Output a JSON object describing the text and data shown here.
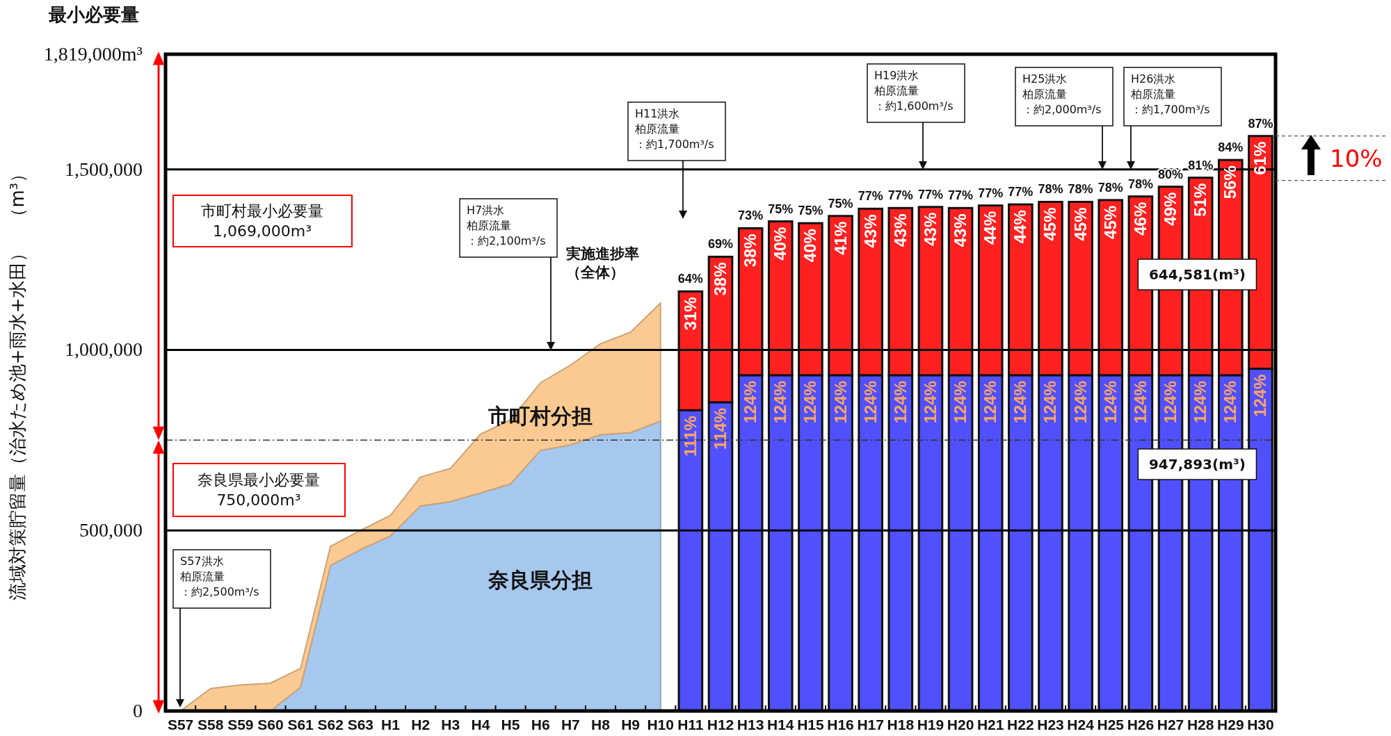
{
  "chart_data": {
    "type": "bar",
    "stacked": true,
    "ylabel": "流域対策貯留量（治水ため池+雨水+水田）　（m³）",
    "categories": [
      "S57",
      "S58",
      "S59",
      "S60",
      "S61",
      "S62",
      "S63",
      "H1",
      "H2",
      "H3",
      "H4",
      "H5",
      "H6",
      "H7",
      "H8",
      "H9",
      "H10",
      "H11",
      "H12",
      "H13",
      "H14",
      "H15",
      "H16",
      "H17",
      "H18",
      "H19",
      "H20",
      "H21",
      "H22",
      "H23",
      "H24",
      "H25",
      "H26",
      "H27",
      "H28",
      "H29",
      "H30"
    ],
    "series": [
      {
        "name": "奈良県分担",
        "type": "area",
        "color": "#a7c8ee",
        "values": [
          0,
          0,
          0,
          0,
          66000,
          403000,
          447000,
          485000,
          568000,
          580000,
          604000,
          629000,
          722000,
          737000,
          765000,
          771000,
          803000,
          null,
          null,
          null,
          null,
          null,
          null,
          null,
          null,
          null,
          null,
          null,
          null,
          null,
          null,
          null,
          null,
          null,
          null,
          null,
          null
        ]
      },
      {
        "name": "市町村分担",
        "type": "area",
        "color": "#fbca92",
        "values": [
          0,
          62000,
          72000,
          77000,
          52000,
          53000,
          53000,
          57000,
          80000,
          92000,
          163000,
          177000,
          187000,
          221000,
          252000,
          278000,
          327000,
          null,
          null,
          null,
          null,
          null,
          null,
          null,
          null,
          null,
          null,
          null,
          null,
          null,
          null,
          null,
          null,
          null,
          null,
          null,
          null
        ]
      },
      {
        "color": "#5050ff",
        "values": [
          null,
          null,
          null,
          null,
          null,
          null,
          null,
          null,
          null,
          null,
          null,
          null,
          null,
          null,
          null,
          null,
          null,
          833000,
          855000,
          930000,
          930000,
          930000,
          930000,
          930000,
          930000,
          930000,
          930000,
          930000,
          930000,
          930000,
          930000,
          930000,
          930000,
          930000,
          930000,
          930000,
          947893
        ]
      },
      {
        "color": "#ff2020",
        "values": [
          null,
          null,
          null,
          null,
          null,
          null,
          null,
          null,
          null,
          null,
          null,
          null,
          null,
          null,
          null,
          null,
          null,
          329000,
          403000,
          407000,
          426000,
          421000,
          441000,
          461000,
          463000,
          466000,
          463000,
          470000,
          473000,
          480000,
          480000,
          485000,
          495000,
          522000,
          547000,
          596000,
          644581
        ]
      }
    ],
    "ylim": [
      0,
      1819000
    ],
    "yticks": [
      0,
      {
        "value": 500000,
        "label": "500,000"
      },
      {
        "value": 1000000,
        "label": "1,000,000"
      },
      {
        "value": 1500000,
        "label": "1,500,000"
      },
      {
        "value": 1819000,
        "label": "1,819,000m³"
      }
    ],
    "grid": "y",
    "ref_lines": [
      {
        "axis": "y",
        "value": 750000,
        "line_style": "dashed",
        "color": "#333333"
      }
    ],
    "annotations": [
      "最小必要量",
      "市町村最小必要量\n1,069,000m³",
      "奈良県最小必要量\n750,000m³",
      "S57洪水柏原流量：約2,500m³/s",
      "H7洪水柏原流量：約2,100m³/s",
      "H11洪水柏原流量：約1,700m³/s",
      "H19洪水柏原流量：約1,600m³/s",
      "H25洪水柏原流量：約2,000m³/s",
      "H26洪水柏原流量：約1,700m³/s",
      "実施進捗率（全体）",
      "644,581(m³)",
      "947,893(m³)",
      "10%",
      {
        "text": "111%",
        "x": "H11",
        "y": 833000
      },
      {
        "text": "31%",
        "x": "H11",
        "y": 1162000
      },
      {
        "text": "64%",
        "x": "H11",
        "y": 1162000
      },
      {
        "text": "114%",
        "x": "H12",
        "y": 855000
      },
      {
        "text": "38%",
        "x": "H12",
        "y": 1258000
      },
      {
        "text": "69%",
        "x": "H12",
        "y": 1258000
      },
      {
        "text": "124%",
        "x": "H13",
        "y": 930000
      },
      {
        "text": "38%",
        "x": "H13",
        "y": 1337000
      },
      {
        "text": "73%",
        "x": "H13",
        "y": 1337000
      },
      {
        "text": "124%",
        "x": "H14",
        "y": 930000
      },
      {
        "text": "40%",
        "x": "H14",
        "y": 1356000
      },
      {
        "text": "75%",
        "x": "H14",
        "y": 1356000
      },
      {
        "text": "124%",
        "x": "H15",
        "y": 930000
      },
      {
        "text": "40%",
        "x": "H15",
        "y": 1351000
      },
      {
        "text": "75%",
        "x": "H15",
        "y": 1351000
      },
      {
        "text": "124%",
        "x": "H16",
        "y": 930000
      },
      {
        "text": "41%",
        "x": "H16",
        "y": 1371000
      },
      {
        "text": "75%",
        "x": "H16",
        "y": 1371000
      },
      {
        "text": "124%",
        "x": "H17",
        "y": 930000
      },
      {
        "text": "43%",
        "x": "H17",
        "y": 1391000
      },
      {
        "text": "77%",
        "x": "H17",
        "y": 1391000
      },
      {
        "text": "124%",
        "x": "H18",
        "y": 930000
      },
      {
        "text": "43%",
        "x": "H18",
        "y": 1393000
      },
      {
        "text": "77%",
        "x": "H18",
        "y": 1393000
      },
      {
        "text": "124%",
        "x": "H19",
        "y": 930000
      },
      {
        "text": "43%",
        "x": "H19",
        "y": 1396000
      },
      {
        "text": "77%",
        "x": "H19",
        "y": 1396000
      },
      {
        "text": "124%",
        "x": "H20",
        "y": 930000
      },
      {
        "text": "43%",
        "x": "H20",
        "y": 1393000
      },
      {
        "text": "77%",
        "x": "H20",
        "y": 1393000
      },
      {
        "text": "124%",
        "x": "H21",
        "y": 930000
      },
      {
        "text": "44%",
        "x": "H21",
        "y": 1400000
      },
      {
        "text": "77%",
        "x": "H21",
        "y": 1400000
      },
      {
        "text": "124%",
        "x": "H22",
        "y": 930000
      },
      {
        "text": "44%",
        "x": "H22",
        "y": 1403000
      },
      {
        "text": "77%",
        "x": "H22",
        "y": 1403000
      },
      {
        "text": "124%",
        "x": "H23",
        "y": 930000
      },
      {
        "text": "45%",
        "x": "H23",
        "y": 1410000
      },
      {
        "text": "78%",
        "x": "H23",
        "y": 1410000
      },
      {
        "text": "124%",
        "x": "H24",
        "y": 930000
      },
      {
        "text": "45%",
        "x": "H24",
        "y": 1410000
      },
      {
        "text": "78%",
        "x": "H24",
        "y": 1410000
      },
      {
        "text": "124%",
        "x": "H25",
        "y": 930000
      },
      {
        "text": "45%",
        "x": "H25",
        "y": 1415000
      },
      {
        "text": "78%",
        "x": "H25",
        "y": 1415000
      },
      {
        "text": "124%",
        "x": "H26",
        "y": 930000
      },
      {
        "text": "46%",
        "x": "H26",
        "y": 1425000
      },
      {
        "text": "78%",
        "x": "H26",
        "y": 1425000
      },
      {
        "text": "124%",
        "x": "H27",
        "y": 930000
      },
      {
        "text": "49%",
        "x": "H27",
        "y": 1452000
      },
      {
        "text": "80%",
        "x": "H27",
        "y": 1452000
      },
      {
        "text": "124%",
        "x": "H28",
        "y": 930000
      },
      {
        "text": "51%",
        "x": "H28",
        "y": 1477000
      },
      {
        "text": "81%",
        "x": "H28",
        "y": 1477000
      },
      {
        "text": "124%",
        "x": "H29",
        "y": 930000
      },
      {
        "text": "56%",
        "x": "H29",
        "y": 1526000
      },
      {
        "text": "84%",
        "x": "H29",
        "y": 1526000
      },
      {
        "text": "124%",
        "x": "H30",
        "y": 947893
      },
      {
        "text": "61%",
        "x": "H30",
        "y": 1592474
      },
      {
        "text": "87%",
        "x": "H30",
        "y": 1592474
      }
    ]
  }
}
